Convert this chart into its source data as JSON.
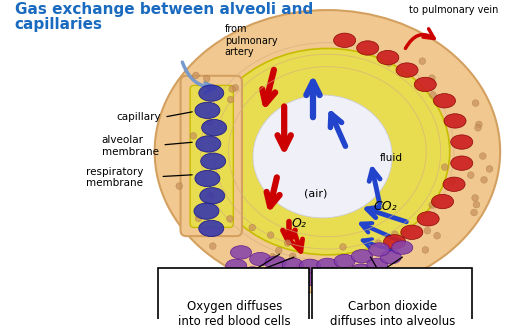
{
  "title_line1": "Gas exchange between alveoli and",
  "title_line2": "capillaries",
  "title_color": "#1a6bbf",
  "title_fontsize": 11,
  "bg_color": "#ffffff",
  "labels": {
    "from_pulmonary_artery": "from\npulmonary\nartery",
    "to_pulmonary_vein": "to pulmonary vein",
    "capillary": "capillary",
    "alveolar_membrane": "alveolar\nmembrane",
    "respiratory_membrane": "respiratory\nmembrane",
    "fluid": "fluid",
    "air": "(air)",
    "o2": "O₂",
    "co2": "CO₂",
    "box1_line1": "Oxygen diffuses",
    "box1_line2": "into red blood cells",
    "box2_line1": "Carbon dioxide",
    "box2_line2": "diffuses into alveolus"
  },
  "colors": {
    "outer_ring_face": "#f0c890",
    "outer_ring_edge": "#d4a060",
    "yellow_face": "#e8dc50",
    "yellow_edge": "#c8bc00",
    "air_face": "#f5f5ff",
    "blue_cells": "#3a3aaa",
    "blue_cells_edge": "#1a1a88",
    "red_cells": "#cc2020",
    "red_cells_edge": "#880000",
    "purple_cells": "#8844aa",
    "purple_cells_edge": "#551188",
    "red_arrow": "#cc0000",
    "blue_arrow": "#2244cc",
    "light_blue_arrow": "#7799cc",
    "text_black": "#000000",
    "tan_dots": "#c8905a"
  },
  "figure_width": 5.3,
  "figure_height": 3.32,
  "dpi": 100
}
